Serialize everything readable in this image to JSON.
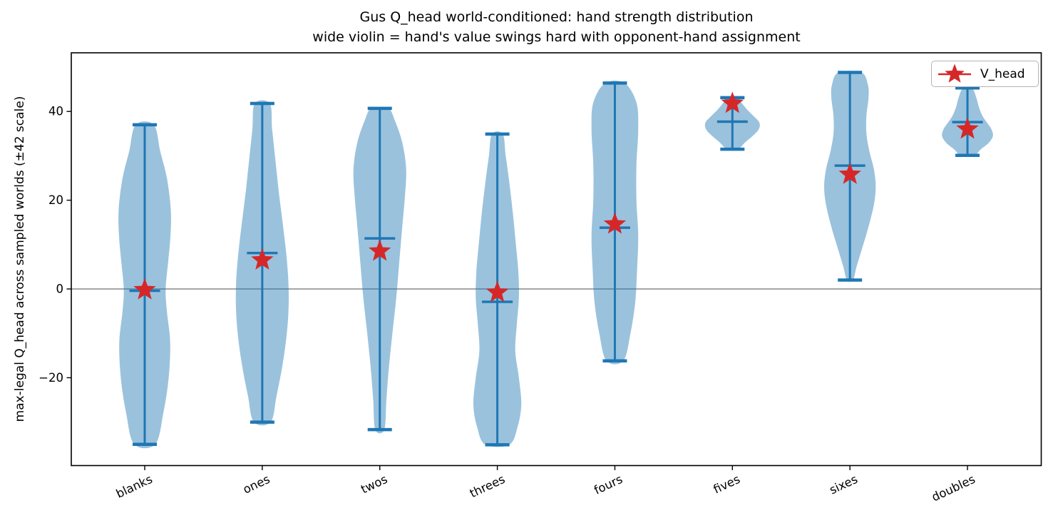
{
  "title": {
    "line1": "Gus Q_head world-conditioned: hand strength distribution",
    "line2": "wide violin = hand's value swings hard with opponent-hand assignment"
  },
  "ylabel": "max-legal Q_head across sampled worlds (±42 scale)",
  "legend": {
    "label": "V_head",
    "marker": "red-star",
    "position": "upper right"
  },
  "chart_data": {
    "type": "violin",
    "title": "Gus Q_head world-conditioned: hand strength distribution",
    "subtitle": "wide violin = hand's value swings hard with opponent-hand assignment",
    "xlabel": "",
    "ylabel": "max-legal Q_head across sampled worlds (±42 scale)",
    "categories": [
      "blanks",
      "ones",
      "twos",
      "threes",
      "fours",
      "fives",
      "sixes",
      "doubles"
    ],
    "ylim": [
      -40,
      53
    ],
    "yticks": [
      -20,
      0,
      20,
      40
    ],
    "zero_line": 0,
    "grid": false,
    "legend_entries": [
      "V_head"
    ],
    "series": [
      {
        "name": "blanks",
        "min": -35.0,
        "max": 37.0,
        "mean": -0.4,
        "v_head": -0.2,
        "profile": [
          [
            -35,
            0.35
          ],
          [
            -28,
            0.62
          ],
          [
            -20,
            0.8
          ],
          [
            -12,
            0.85
          ],
          [
            -5,
            0.74
          ],
          [
            0,
            0.7
          ],
          [
            6,
            0.78
          ],
          [
            12,
            0.86
          ],
          [
            18,
            0.87
          ],
          [
            25,
            0.74
          ],
          [
            31,
            0.52
          ],
          [
            37,
            0.3
          ]
        ]
      },
      {
        "name": "ones",
        "min": -30.0,
        "max": 41.8,
        "mean": 8.1,
        "v_head": 6.5,
        "profile": [
          [
            -30,
            0.28
          ],
          [
            -24,
            0.48
          ],
          [
            -17,
            0.68
          ],
          [
            -10,
            0.82
          ],
          [
            -4,
            0.88
          ],
          [
            2,
            0.87
          ],
          [
            8,
            0.8
          ],
          [
            15,
            0.68
          ],
          [
            22,
            0.55
          ],
          [
            29,
            0.44
          ],
          [
            36,
            0.33
          ],
          [
            41.8,
            0.25
          ]
        ]
      },
      {
        "name": "twos",
        "min": -31.7,
        "max": 40.7,
        "mean": 11.4,
        "v_head": 8.5,
        "profile": [
          [
            -31.7,
            0.15
          ],
          [
            -25,
            0.22
          ],
          [
            -18,
            0.3
          ],
          [
            -10,
            0.42
          ],
          [
            -2,
            0.55
          ],
          [
            6,
            0.65
          ],
          [
            14,
            0.75
          ],
          [
            21,
            0.84
          ],
          [
            27,
            0.88
          ],
          [
            33,
            0.75
          ],
          [
            38,
            0.5
          ],
          [
            40.7,
            0.28
          ]
        ]
      },
      {
        "name": "threes",
        "min": -35.1,
        "max": 34.9,
        "mean": -2.9,
        "v_head": -0.8,
        "profile": [
          [
            -35.1,
            0.4
          ],
          [
            -31,
            0.68
          ],
          [
            -26,
            0.8
          ],
          [
            -20,
            0.72
          ],
          [
            -14,
            0.6
          ],
          [
            -8,
            0.65
          ],
          [
            -2,
            0.72
          ],
          [
            4,
            0.7
          ],
          [
            10,
            0.62
          ],
          [
            17,
            0.52
          ],
          [
            24,
            0.4
          ],
          [
            30,
            0.28
          ],
          [
            34.9,
            0.18
          ]
        ]
      },
      {
        "name": "fours",
        "min": -16.2,
        "max": 46.4,
        "mean": 13.8,
        "v_head": 14.6,
        "profile": [
          [
            -16.2,
            0.28
          ],
          [
            -10,
            0.52
          ],
          [
            -3,
            0.68
          ],
          [
            4,
            0.74
          ],
          [
            12,
            0.78
          ],
          [
            20,
            0.72
          ],
          [
            28,
            0.72
          ],
          [
            36,
            0.78
          ],
          [
            42,
            0.72
          ],
          [
            46.4,
            0.32
          ]
        ]
      },
      {
        "name": "fives",
        "min": 31.5,
        "max": 43.1,
        "mean": 37.7,
        "v_head": 41.8,
        "profile": [
          [
            31.5,
            0.18
          ],
          [
            33,
            0.42
          ],
          [
            34.5,
            0.68
          ],
          [
            36,
            0.88
          ],
          [
            37.5,
            0.9
          ],
          [
            39,
            0.7
          ],
          [
            40.5,
            0.48
          ],
          [
            42,
            0.3
          ],
          [
            43.1,
            0.18
          ]
        ]
      },
      {
        "name": "sixes",
        "min": 2.0,
        "max": 48.8,
        "mean": 27.8,
        "v_head": 25.8,
        "profile": [
          [
            2,
            0.1
          ],
          [
            5,
            0.22
          ],
          [
            9,
            0.4
          ],
          [
            14,
            0.62
          ],
          [
            19,
            0.8
          ],
          [
            23,
            0.86
          ],
          [
            27,
            0.8
          ],
          [
            31,
            0.65
          ],
          [
            35,
            0.55
          ],
          [
            39,
            0.55
          ],
          [
            43,
            0.62
          ],
          [
            46,
            0.6
          ],
          [
            48.8,
            0.38
          ]
        ]
      },
      {
        "name": "doubles",
        "min": 30.1,
        "max": 45.3,
        "mean": 37.6,
        "v_head": 36.0,
        "profile": [
          [
            30.1,
            0.22
          ],
          [
            31.5,
            0.45
          ],
          [
            33,
            0.72
          ],
          [
            34.5,
            0.85
          ],
          [
            36,
            0.8
          ],
          [
            37.5,
            0.65
          ],
          [
            39,
            0.5
          ],
          [
            41,
            0.38
          ],
          [
            43,
            0.3
          ],
          [
            45.3,
            0.15
          ]
        ]
      }
    ],
    "colors": {
      "violin_fill": "#1f77b4",
      "violin_fill_alpha": 0.45,
      "violin_line": "#1f77b4",
      "star": "#d62728",
      "zero_line": "#a6a6a6",
      "spine": "#000000"
    }
  }
}
